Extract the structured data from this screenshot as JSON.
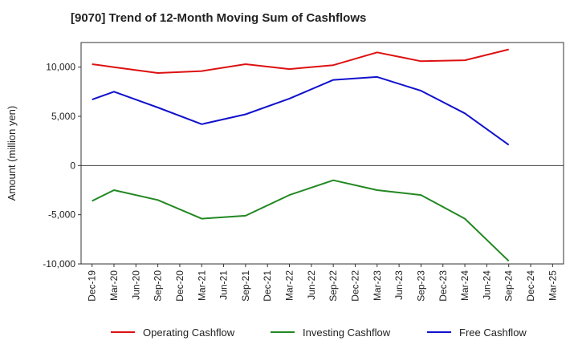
{
  "chart_data": {
    "type": "line",
    "title": "[9070]  Trend of 12-Month Moving Sum of Cashflows",
    "xlabel": "",
    "ylabel": "Amount (million yen)",
    "ylim": [
      -10000,
      12500
    ],
    "yticks": [
      -10000,
      -5000,
      0,
      5000,
      10000
    ],
    "ytick_labels": [
      "-10,000",
      "-5,000",
      "0",
      "5,000",
      "10,000"
    ],
    "categories": [
      "Dec-19",
      "Mar-20",
      "Jun-20",
      "Sep-20",
      "Dec-20",
      "Mar-21",
      "Jun-21",
      "Sep-21",
      "Dec-21",
      "Mar-22",
      "Jun-22",
      "Sep-22",
      "Dec-22",
      "Mar-23",
      "Jun-23",
      "Sep-23",
      "Dec-23",
      "Mar-24",
      "Jun-24",
      "Sep-24",
      "Dec-24",
      "Mar-25"
    ],
    "grid": true,
    "legend": "bottom",
    "series": [
      {
        "name": "Operating Cashflow",
        "color": "#dd1111",
        "values": [
          10300,
          10000,
          null,
          9400,
          null,
          9600,
          null,
          10300,
          null,
          9800,
          null,
          10200,
          null,
          11500,
          null,
          10600,
          null,
          10700,
          null,
          11800,
          null,
          null
        ]
      },
      {
        "name": "Investing Cashflow",
        "color": "#228822",
        "values": [
          -3600,
          -2500,
          null,
          -3500,
          null,
          -5400,
          null,
          -5100,
          null,
          -3000,
          null,
          -1500,
          null,
          -2500,
          null,
          -3000,
          null,
          -5400,
          null,
          -9700,
          null,
          null
        ]
      },
      {
        "name": "Free Cashflow",
        "color": "#1111cc",
        "values": [
          6700,
          7500,
          null,
          5900,
          null,
          4200,
          null,
          5200,
          null,
          6800,
          null,
          8700,
          null,
          9000,
          null,
          7600,
          null,
          5300,
          null,
          2100,
          null,
          null
        ]
      }
    ]
  }
}
